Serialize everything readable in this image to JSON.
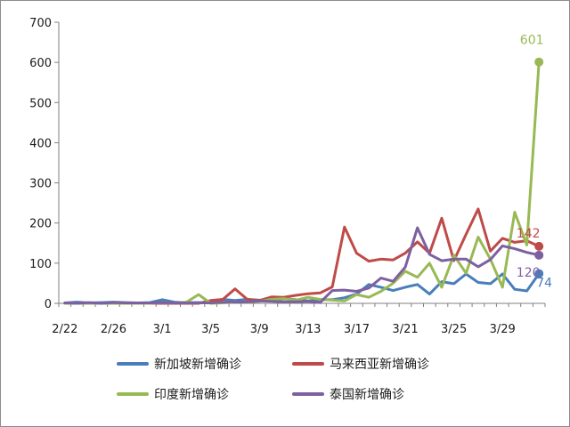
{
  "chart_data": {
    "type": "line",
    "title": "",
    "xlabel": "",
    "ylabel": "",
    "ylim": [
      0,
      700
    ],
    "yticks": [
      0,
      100,
      200,
      300,
      400,
      500,
      600,
      700
    ],
    "x": [
      "2/22",
      "2/23",
      "2/24",
      "2/25",
      "2/26",
      "2/27",
      "2/28",
      "2/29",
      "3/1",
      "3/2",
      "3/3",
      "3/4",
      "3/5",
      "3/6",
      "3/7",
      "3/8",
      "3/9",
      "3/10",
      "3/11",
      "3/12",
      "3/13",
      "3/14",
      "3/15",
      "3/16",
      "3/17",
      "3/18",
      "3/19",
      "3/20",
      "3/21",
      "3/22",
      "3/23",
      "3/24",
      "3/25",
      "3/26",
      "3/27",
      "3/28",
      "3/29",
      "3/30",
      "3/31",
      "4/1"
    ],
    "x_tick_labels": [
      "2/22",
      "2/26",
      "3/1",
      "3/5",
      "3/9",
      "3/13",
      "3/17",
      "3/21",
      "3/25",
      "3/29"
    ],
    "x_tick_indices": [
      0,
      4,
      8,
      12,
      16,
      20,
      24,
      28,
      32,
      36
    ],
    "grid": false,
    "legend_position": "bottom",
    "series": [
      {
        "name": "新加坡新增确诊",
        "color": "#4a7ebb",
        "values": [
          1,
          3,
          1,
          2,
          3,
          2,
          1,
          2,
          9,
          3,
          2,
          2,
          2,
          10,
          7,
          10,
          8,
          6,
          12,
          9,
          6,
          9,
          9,
          14,
          23,
          47,
          40,
          32,
          40,
          47,
          23,
          54,
          49,
          73,
          52,
          49,
          73,
          35,
          31,
          74
        ],
        "end_label": "74"
      },
      {
        "name": "马来西亚新增确诊",
        "color": "#be4b48",
        "values": [
          0,
          0,
          0,
          0,
          0,
          0,
          0,
          0,
          0,
          0,
          0,
          0,
          7,
          10,
          36,
          10,
          7,
          16,
          15,
          20,
          24,
          26,
          41,
          190,
          125,
          105,
          110,
          108,
          125,
          153,
          125,
          212,
          106,
          172,
          235,
          130,
          162,
          152,
          156,
          142
        ],
        "end_label": "142"
      },
      {
        "name": "印度新增确诊",
        "color": "#98b954",
        "values": [
          0,
          0,
          0,
          0,
          0,
          0,
          0,
          0,
          2,
          1,
          3,
          22,
          0,
          1,
          3,
          4,
          5,
          10,
          12,
          8,
          15,
          10,
          8,
          6,
          22,
          15,
          30,
          50,
          80,
          65,
          100,
          40,
          120,
          75,
          165,
          110,
          40,
          227,
          145,
          601
        ],
        "end_label": "601"
      },
      {
        "name": "泰国新增确诊",
        "color": "#7d60a0",
        "values": [
          1,
          0,
          2,
          0,
          2,
          1,
          1,
          1,
          2,
          1,
          1,
          1,
          1,
          3,
          3,
          4,
          6,
          5,
          4,
          4,
          5,
          2,
          32,
          33,
          30,
          38,
          63,
          55,
          90,
          188,
          122,
          106,
          110,
          110,
          91,
          109,
          143,
          136,
          127,
          120
        ],
        "end_label": "120"
      }
    ]
  }
}
